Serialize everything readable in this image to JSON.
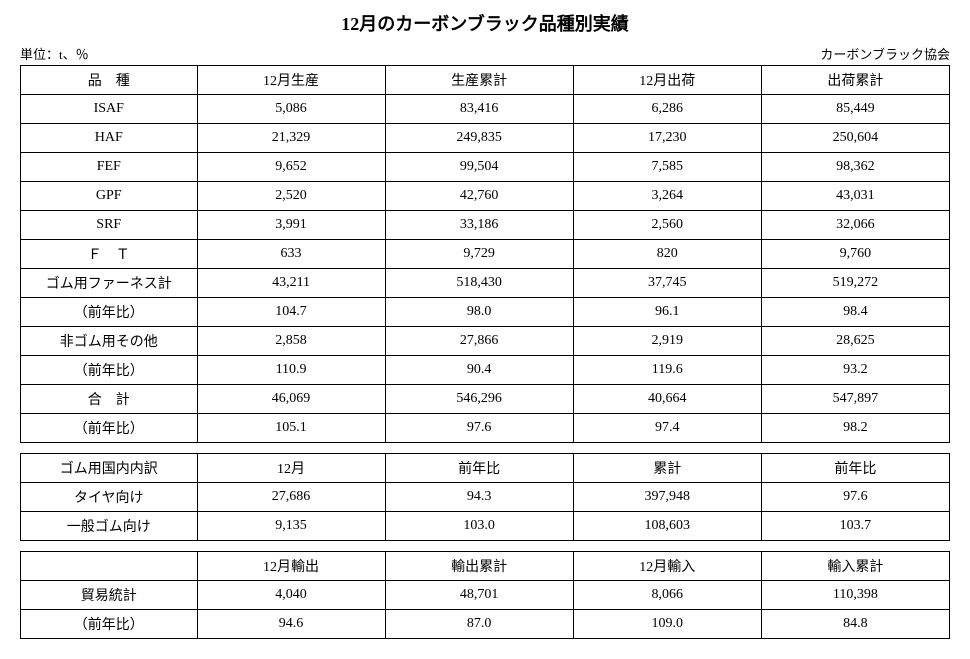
{
  "title": "12月のカーボンブラック品種別実績",
  "unit_label": "単位：t、％",
  "source_label": "カーボンブラック協会",
  "table1": {
    "headers": [
      "品　種",
      "12月生産",
      "生産累計",
      "12月出荷",
      "出荷累計"
    ],
    "rows": [
      [
        "ISAF",
        "5,086",
        "83,416",
        "6,286",
        "85,449"
      ],
      [
        "HAF",
        "21,329",
        "249,835",
        "17,230",
        "250,604"
      ],
      [
        "FEF",
        "9,652",
        "99,504",
        "7,585",
        "98,362"
      ],
      [
        "GPF",
        "2,520",
        "42,760",
        "3,264",
        "43,031"
      ],
      [
        "SRF",
        "3,991",
        "33,186",
        "2,560",
        "32,066"
      ],
      [
        "Ｆ　Ｔ",
        "633",
        "9,729",
        "820",
        "9,760"
      ],
      [
        "ゴム用ファーネス計",
        "43,211",
        "518,430",
        "37,745",
        "519,272"
      ],
      [
        "（前年比）",
        "104.7",
        "98.0",
        "96.1",
        "98.4"
      ],
      [
        "非ゴム用その他",
        "2,858",
        "27,866",
        "2,919",
        "28,625"
      ],
      [
        "（前年比）",
        "110.9",
        "90.4",
        "119.6",
        "93.2"
      ],
      [
        "合　計",
        "46,069",
        "546,296",
        "40,664",
        "547,897"
      ],
      [
        "（前年比）",
        "105.1",
        "97.6",
        "97.4",
        "98.2"
      ]
    ],
    "colwidths": [
      "19%",
      "20.25%",
      "20.25%",
      "20.25%",
      "20.25%"
    ]
  },
  "table2": {
    "headers": [
      "ゴム用国内内訳",
      "12月",
      "前年比",
      "累計",
      "前年比"
    ],
    "rows": [
      [
        "タイヤ向け",
        "27,686",
        "94.3",
        "397,948",
        "97.6"
      ],
      [
        "一般ゴム向け",
        "9,135",
        "103.0",
        "108,603",
        "103.7"
      ]
    ]
  },
  "table3": {
    "headers": [
      "",
      "12月輸出",
      "輸出累計",
      "12月輸入",
      "輸入累計"
    ],
    "rows": [
      [
        "貿易統計",
        "4,040",
        "48,701",
        "8,066",
        "110,398"
      ],
      [
        "（前年比）",
        "94.6",
        "87.0",
        "109.0",
        "84.8"
      ]
    ]
  }
}
